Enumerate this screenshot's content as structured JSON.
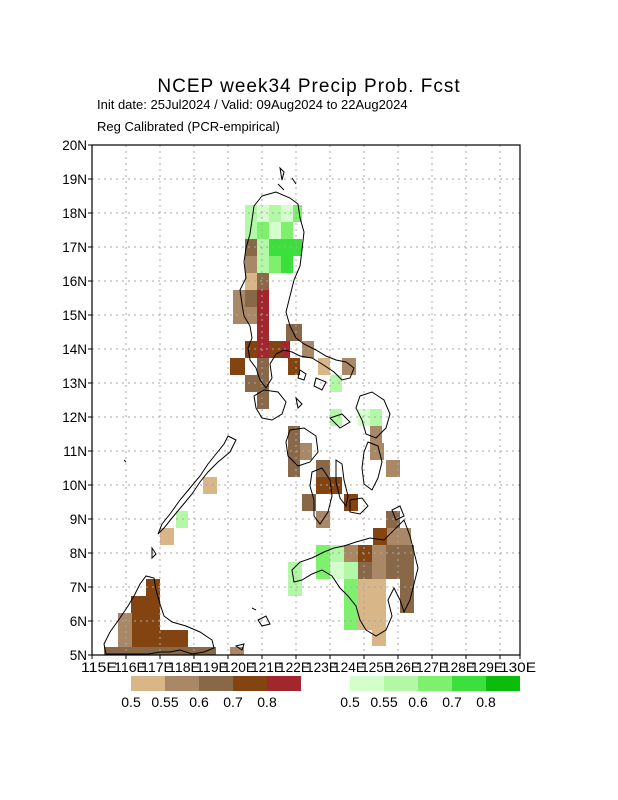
{
  "title": "NCEP week34 Precip Prob. Fcst",
  "subtitle_dates": "Init date: 25Jul2024 / Valid: 09Aug2024 to 22Aug2024",
  "subtitle_method": "Reg Calibrated (PCR-empirical)",
  "lat_labels": [
    "5N",
    "6N",
    "7N",
    "8N",
    "9N",
    "10N",
    "11N",
    "12N",
    "13N",
    "14N",
    "15N",
    "16N",
    "17N",
    "18N",
    "19N",
    "20N"
  ],
  "lon_labels": [
    "115E",
    "116E",
    "117E",
    "118E",
    "119E",
    "120E",
    "121E",
    "122E",
    "123E",
    "124E",
    "125E",
    "126E",
    "127E",
    "128E",
    "129E",
    "130E"
  ],
  "dry_legend": {
    "colors": [
      "#d8b688",
      "#a88866",
      "#886848",
      "#844412",
      "#a2262e"
    ],
    "labels": [
      "0.5",
      "0.55",
      "0.6",
      "0.7",
      "0.8"
    ]
  },
  "wet_legend": {
    "colors": [
      "#d4ffcc",
      "#b2f8a6",
      "#7ef06e",
      "#3ce03c",
      "#0cbc0c"
    ],
    "labels": [
      "0.5",
      "0.55",
      "0.6",
      "0.7",
      "0.8"
    ]
  }
}
